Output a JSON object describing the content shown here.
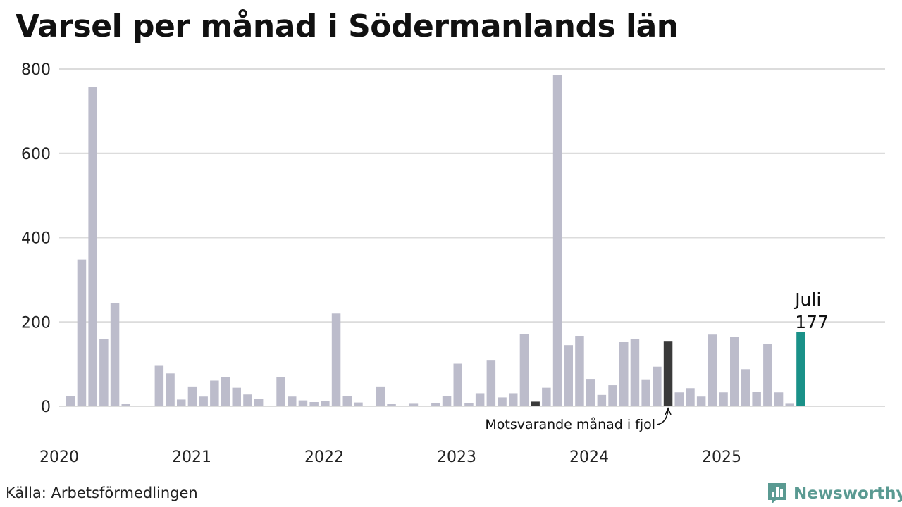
{
  "title": "Varsel per månad i Södermanlands län",
  "source": "Källa: Arbetsförmedlingen",
  "brand": {
    "name": "Newsworthy",
    "color": "#5a9a92",
    "icon": "bar-chart-logo-icon"
  },
  "colors": {
    "default": "#bcbccb",
    "highlight": "#1a9188",
    "previous_year": "#3a3a3a",
    "grid": "#dcdcdc"
  },
  "chart_data": {
    "type": "bar",
    "title": "Varsel per månad i Södermanlands län",
    "ylim": [
      0,
      800
    ],
    "yticks": [
      0,
      200,
      400,
      600,
      800
    ],
    "grid": true,
    "year_labels": [
      "2020",
      "2021",
      "2022",
      "2023",
      "2024",
      "2025"
    ],
    "categories": [
      "2020-01",
      "2020-02",
      "2020-03",
      "2020-04",
      "2020-05",
      "2020-06",
      "2020-07",
      "2020-08",
      "2020-09",
      "2020-10",
      "2020-11",
      "2020-12",
      "2021-01",
      "2021-02",
      "2021-03",
      "2021-04",
      "2021-05",
      "2021-06",
      "2021-07",
      "2021-08",
      "2021-09",
      "2021-10",
      "2021-11",
      "2021-12",
      "2022-01",
      "2022-02",
      "2022-03",
      "2022-04",
      "2022-05",
      "2022-06",
      "2022-07",
      "2022-08",
      "2022-09",
      "2022-10",
      "2022-11",
      "2022-12",
      "2023-01",
      "2023-02",
      "2023-03",
      "2023-04",
      "2023-05",
      "2023-06",
      "2023-07",
      "2023-08",
      "2023-09",
      "2023-10",
      "2023-11",
      "2023-12",
      "2024-01",
      "2024-02",
      "2024-03",
      "2024-04",
      "2024-05",
      "2024-06",
      "2024-07",
      "2024-08",
      "2024-09",
      "2024-10",
      "2024-11",
      "2024-12",
      "2025-01",
      "2025-02",
      "2025-03",
      "2025-04",
      "2025-05",
      "2025-06",
      "2025-07"
    ],
    "values": [
      25,
      348,
      757,
      160,
      245,
      5,
      0,
      0,
      96,
      78,
      16,
      47,
      23,
      61,
      69,
      44,
      28,
      18,
      0,
      70,
      23,
      14,
      10,
      13,
      220,
      24,
      9,
      0,
      47,
      5,
      0,
      6,
      0,
      7,
      24,
      101,
      7,
      31,
      110,
      21,
      31,
      171,
      11,
      44,
      785,
      145,
      167,
      65,
      27,
      50,
      153,
      159,
      64,
      94,
      155,
      33,
      43,
      23,
      170,
      33,
      164,
      88,
      35,
      147,
      33,
      6,
      177
    ],
    "highlight_index": 66,
    "previous_year_indices": [
      6,
      42,
      54
    ],
    "annotations": {
      "highlight_label": "Juli",
      "highlight_value": "177",
      "previous_label": "Motsvarande månad i fjol"
    }
  }
}
